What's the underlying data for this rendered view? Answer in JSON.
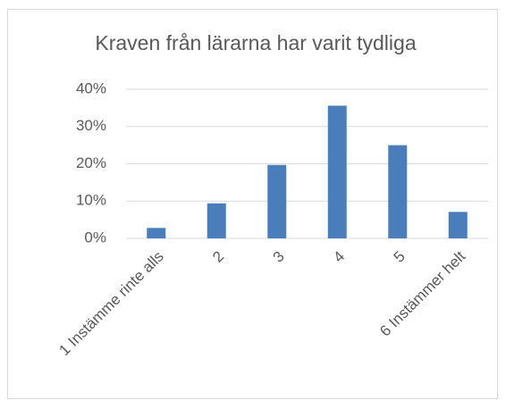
{
  "chart_data": {
    "type": "bar",
    "title": "Kraven från lärarna har varit tydliga",
    "categories": [
      "1 Instämme rinte alls",
      "2",
      "3",
      "4",
      "5",
      "6 Instämmer helt"
    ],
    "values": [
      2.8,
      9.4,
      19.7,
      35.6,
      25.0,
      7.1
    ],
    "color": "#4a7ebb",
    "ylim": [
      0,
      40
    ],
    "yticks": [
      {
        "value": 0,
        "label": "0%"
      },
      {
        "value": 10,
        "label": "10%"
      },
      {
        "value": 20,
        "label": "20%"
      },
      {
        "value": 30,
        "label": "30%"
      },
      {
        "value": 40,
        "label": "40%"
      }
    ],
    "grid": true
  }
}
